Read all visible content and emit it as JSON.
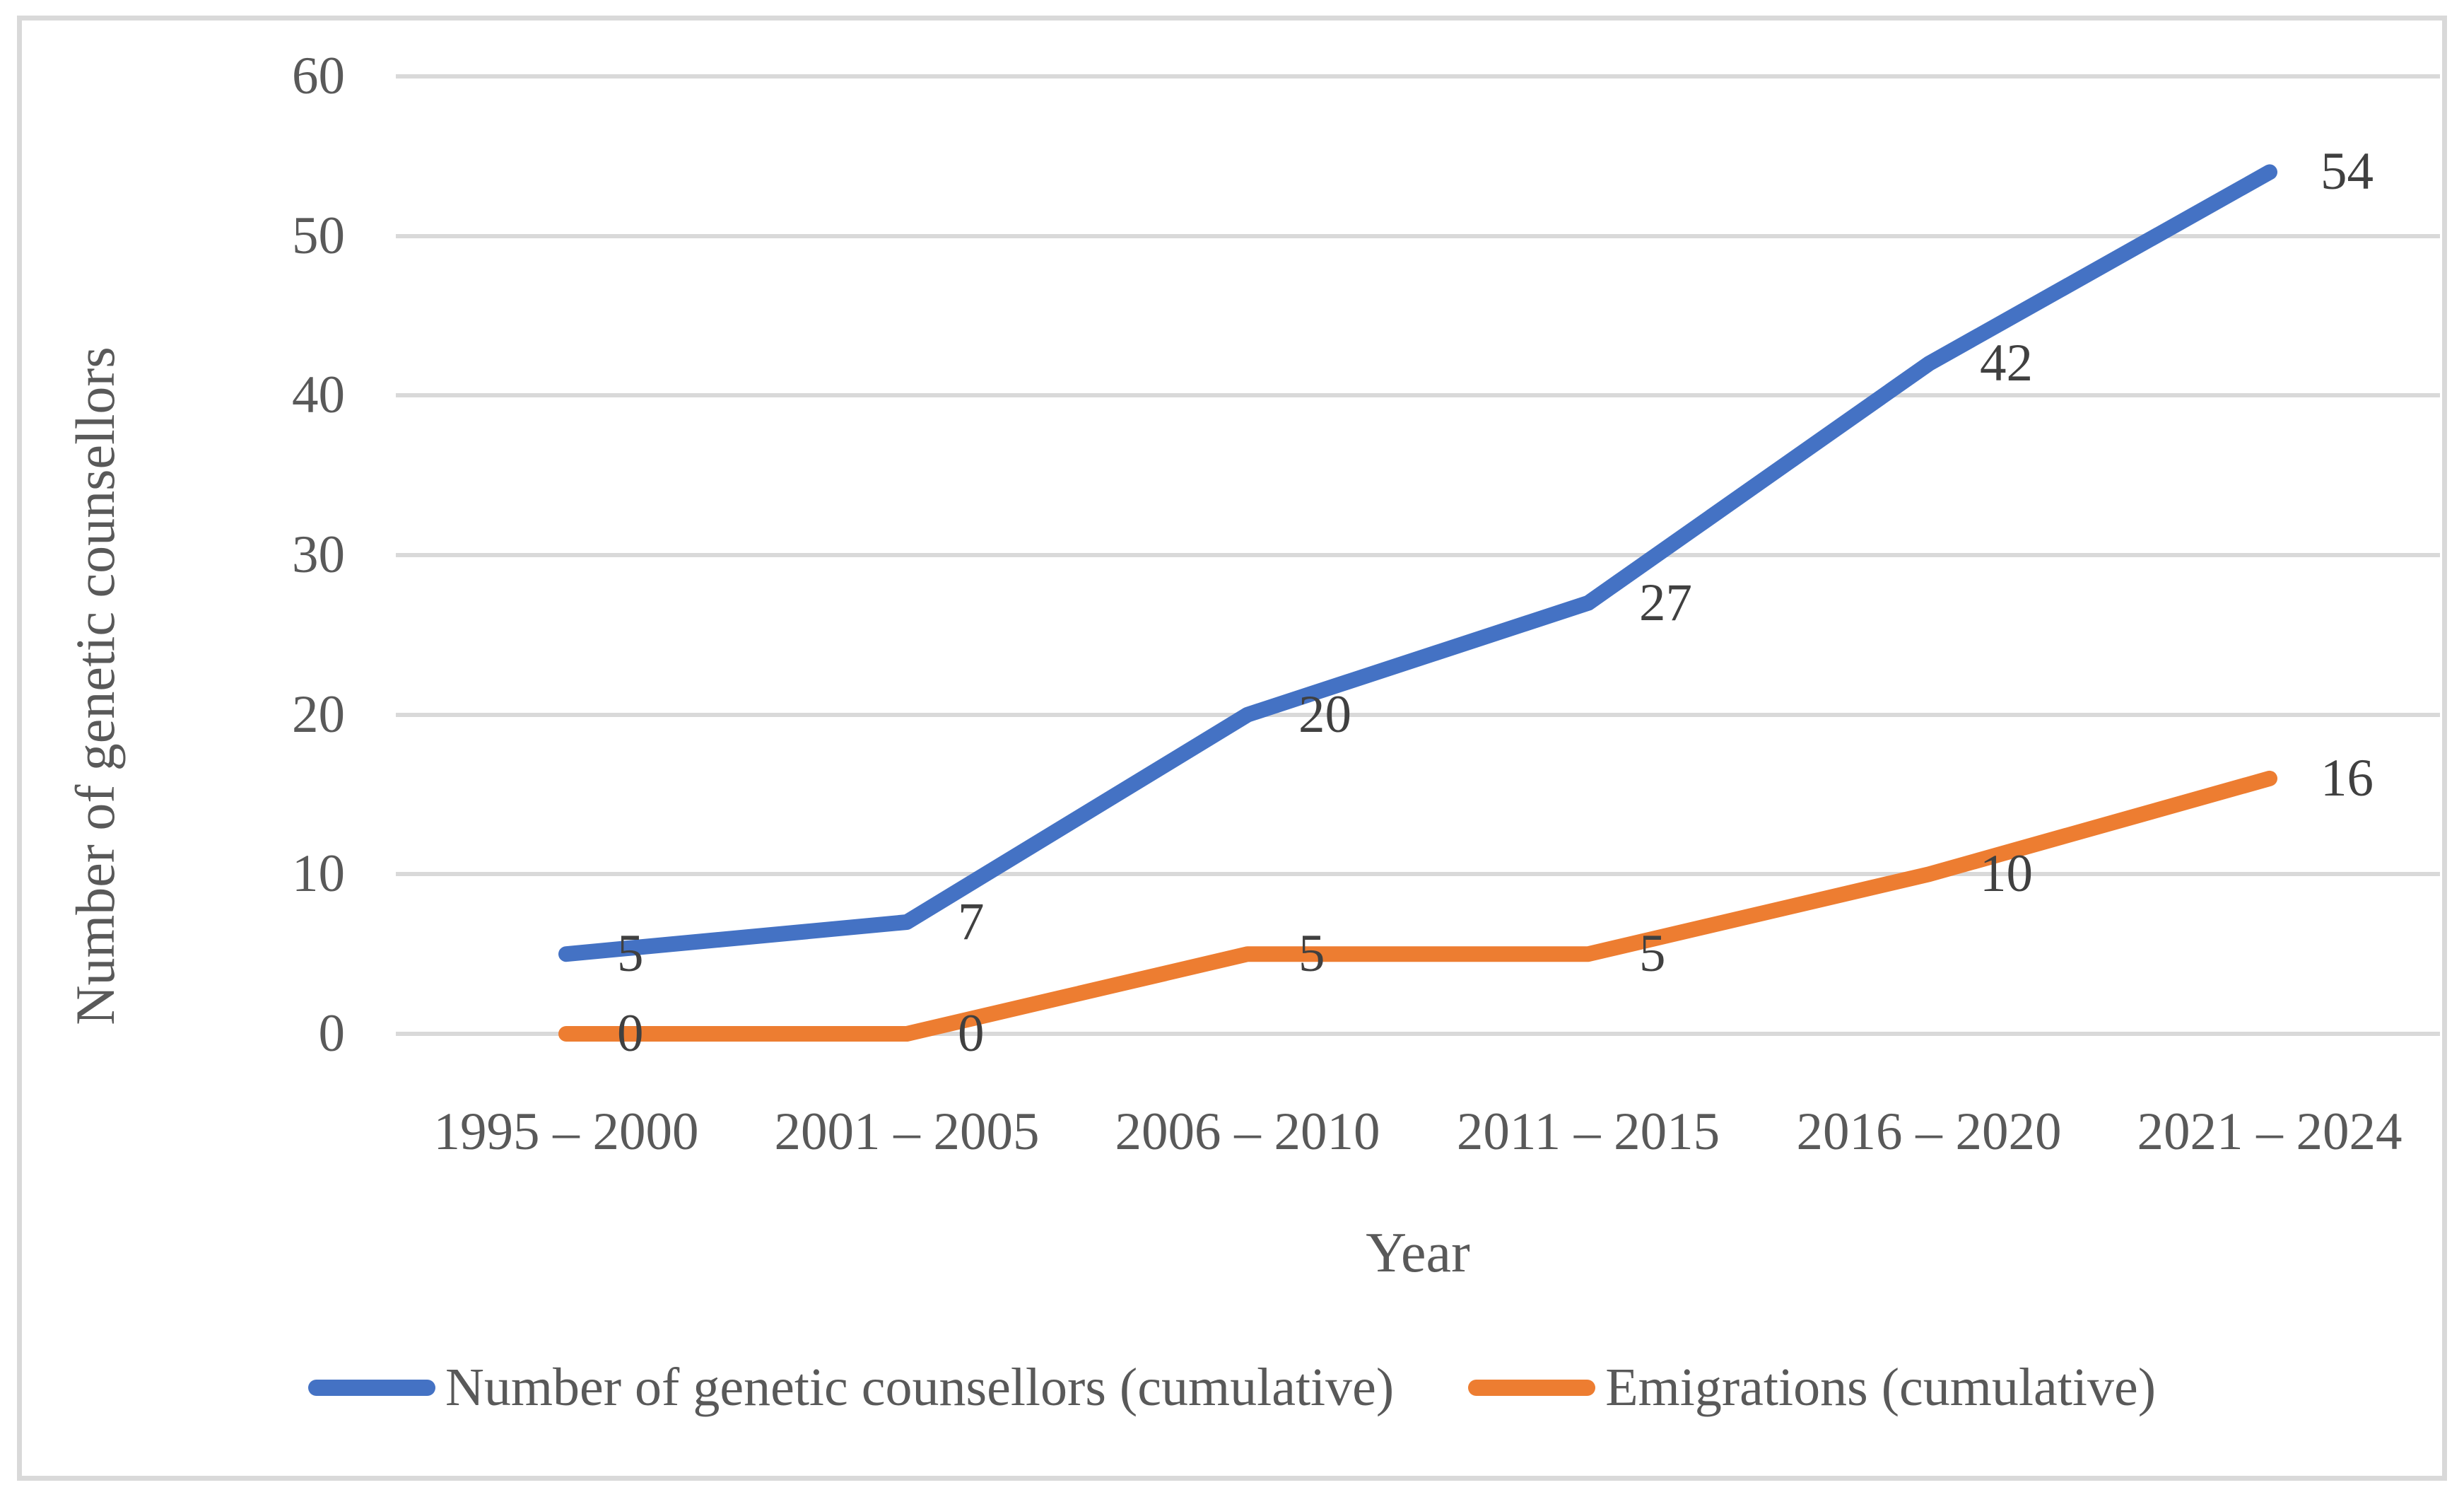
{
  "chart_data": {
    "type": "line",
    "title": "",
    "xlabel": "Year",
    "ylabel": "Number of genetic counsellors",
    "categories": [
      "1995 – 2000",
      "2001 – 2005",
      "2006 – 2010",
      "2011 – 2015",
      "2016 – 2020",
      "2021 – 2024"
    ],
    "series": [
      {
        "name": "Number of genetic counsellors (cumulative)",
        "color": "#4472C4",
        "values": [
          5,
          7,
          20,
          27,
          42,
          54
        ]
      },
      {
        "name": "Emigrations (cumulative)",
        "color": "#ED7D31",
        "values": [
          0,
          0,
          5,
          5,
          10,
          16
        ]
      }
    ],
    "ylim": [
      0,
      60
    ],
    "y_ticks": [
      60,
      50,
      40,
      30,
      20,
      10,
      0
    ],
    "grid": "horizontal",
    "legend_position": "bottom",
    "data_labels": "right-of-point"
  },
  "colors": {
    "gridline": "#d9d9d9",
    "chart_border": "#d9d9d9",
    "axis_text": "#595959",
    "data_label_text": "#404040",
    "background": "#ffffff"
  }
}
